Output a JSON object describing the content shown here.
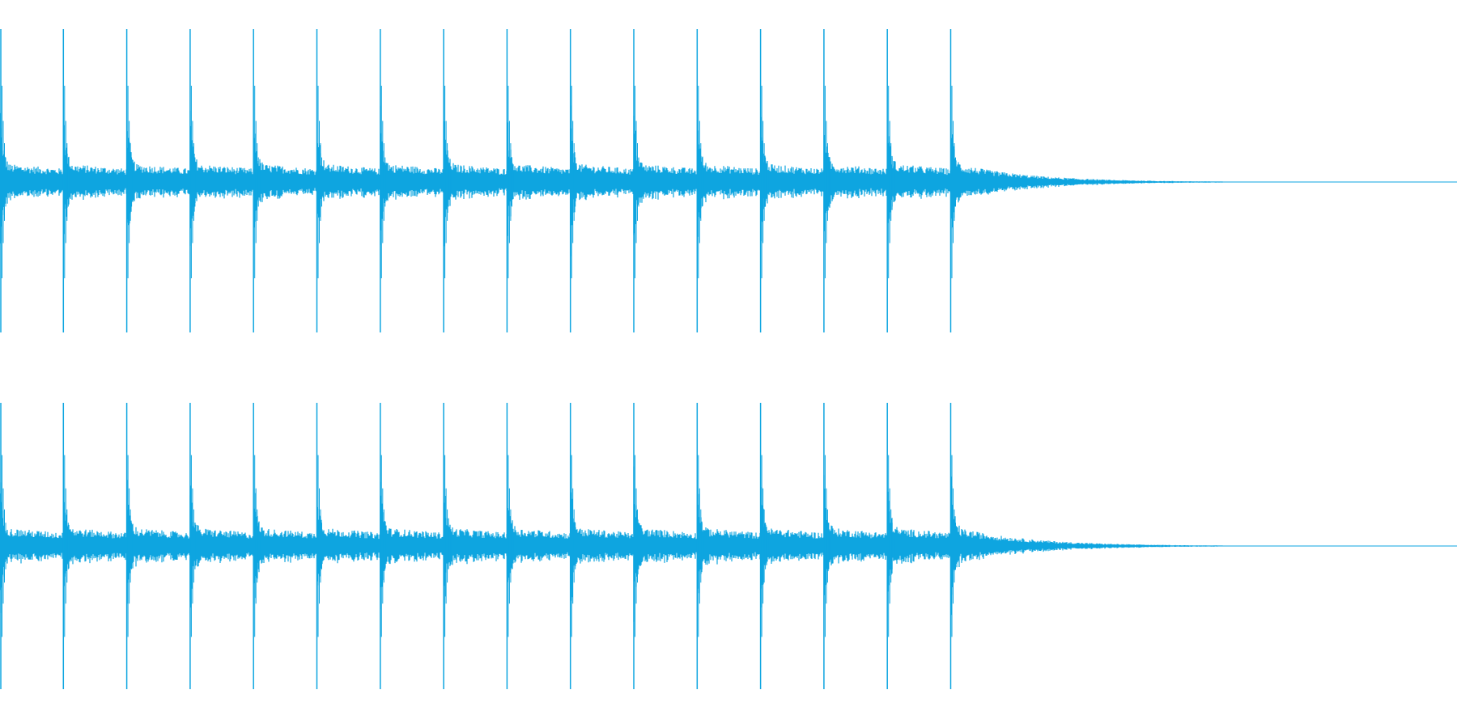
{
  "waveform": {
    "color": "#0ea5e0",
    "channel_count": 2,
    "channels": [
      {
        "name": "channel-top"
      },
      {
        "name": "channel-bottom"
      }
    ],
    "hit_count": 16,
    "decay_tail": true
  }
}
